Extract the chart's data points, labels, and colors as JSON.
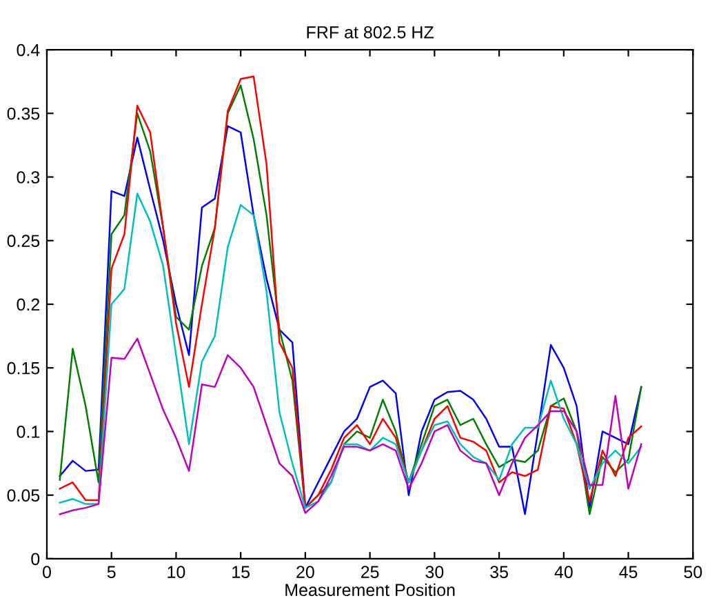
{
  "chart_data": {
    "type": "line",
    "title": "FRF at 802.5 HZ",
    "xlabel": "Measurement Position",
    "x": [
      1,
      2,
      3,
      4,
      5,
      6,
      7,
      8,
      9,
      10,
      11,
      12,
      13,
      14,
      15,
      16,
      17,
      18,
      19,
      20,
      21,
      22,
      23,
      24,
      25,
      26,
      27,
      28,
      29,
      30,
      31,
      32,
      33,
      34,
      35,
      36,
      37,
      38,
      39,
      40,
      41,
      42,
      43,
      44,
      45,
      46
    ],
    "series": [
      {
        "color": "#0000ff",
        "values": [
          0.065,
          0.077,
          0.069,
          0.07,
          0.289,
          0.285,
          0.331,
          0.29,
          0.25,
          0.2,
          0.16,
          0.276,
          0.283,
          0.34,
          0.335,
          0.27,
          0.22,
          0.18,
          0.17,
          0.04,
          0.06,
          0.08,
          0.1,
          0.11,
          0.135,
          0.14,
          0.13,
          0.05,
          0.1,
          0.125,
          0.131,
          0.132,
          0.125,
          0.11,
          0.088,
          0.088,
          0.035,
          0.1,
          0.168,
          0.15,
          0.12,
          0.04,
          0.1,
          0.095,
          0.09,
          0.135
        ]
      },
      {
        "color": "#008000",
        "values": [
          0.062,
          0.165,
          0.12,
          0.06,
          0.255,
          0.27,
          0.35,
          0.32,
          0.26,
          0.19,
          0.18,
          0.23,
          0.26,
          0.35,
          0.372,
          0.33,
          0.27,
          0.18,
          0.14,
          0.04,
          0.05,
          0.06,
          0.09,
          0.1,
          0.095,
          0.125,
          0.1,
          0.06,
          0.09,
          0.12,
          0.125,
          0.105,
          0.11,
          0.09,
          0.072,
          0.078,
          0.076,
          0.085,
          0.12,
          0.126,
          0.1,
          0.035,
          0.08,
          0.068,
          0.078,
          0.135
        ]
      },
      {
        "color": "#ff0000",
        "values": [
          0.055,
          0.06,
          0.046,
          0.046,
          0.228,
          0.255,
          0.356,
          0.335,
          0.26,
          0.185,
          0.135,
          0.2,
          0.26,
          0.352,
          0.377,
          0.379,
          0.31,
          0.17,
          0.15,
          0.04,
          0.05,
          0.07,
          0.095,
          0.105,
          0.09,
          0.11,
          0.095,
          0.06,
          0.085,
          0.11,
          0.12,
          0.095,
          0.092,
          0.085,
          0.06,
          0.068,
          0.065,
          0.07,
          0.12,
          0.118,
          0.09,
          0.045,
          0.085,
          0.065,
          0.095,
          0.104
        ]
      },
      {
        "color": "#00bfbf",
        "values": [
          0.044,
          0.047,
          0.043,
          0.043,
          0.2,
          0.212,
          0.287,
          0.265,
          0.23,
          0.16,
          0.09,
          0.155,
          0.175,
          0.245,
          0.278,
          0.27,
          0.21,
          0.115,
          0.075,
          0.04,
          0.045,
          0.06,
          0.09,
          0.09,
          0.085,
          0.095,
          0.09,
          0.06,
          0.085,
          0.105,
          0.108,
          0.09,
          0.08,
          0.075,
          0.062,
          0.09,
          0.103,
          0.103,
          0.14,
          0.11,
          0.09,
          0.055,
          0.075,
          0.085,
          0.075,
          0.088
        ]
      },
      {
        "color": "#bf00bf",
        "values": [
          0.035,
          0.038,
          0.04,
          0.043,
          0.158,
          0.157,
          0.173,
          0.145,
          0.117,
          0.095,
          0.069,
          0.137,
          0.135,
          0.16,
          0.15,
          0.135,
          0.105,
          0.075,
          0.065,
          0.036,
          0.045,
          0.065,
          0.088,
          0.088,
          0.085,
          0.09,
          0.085,
          0.055,
          0.075,
          0.1,
          0.105,
          0.085,
          0.077,
          0.075,
          0.05,
          0.075,
          0.095,
          0.105,
          0.116,
          0.116,
          0.1,
          0.058,
          0.058,
          0.128,
          0.055,
          0.09
        ]
      }
    ],
    "xlim": [
      0,
      50
    ],
    "xticks": [
      0,
      5,
      10,
      15,
      20,
      25,
      30,
      35,
      40,
      45,
      50
    ],
    "ylim": [
      0,
      0.4
    ],
    "yticks": [
      0,
      0.05,
      0.1,
      0.15,
      0.2,
      0.25,
      0.3,
      0.35,
      0.4
    ],
    "marker": "none",
    "line_style": "solid"
  }
}
